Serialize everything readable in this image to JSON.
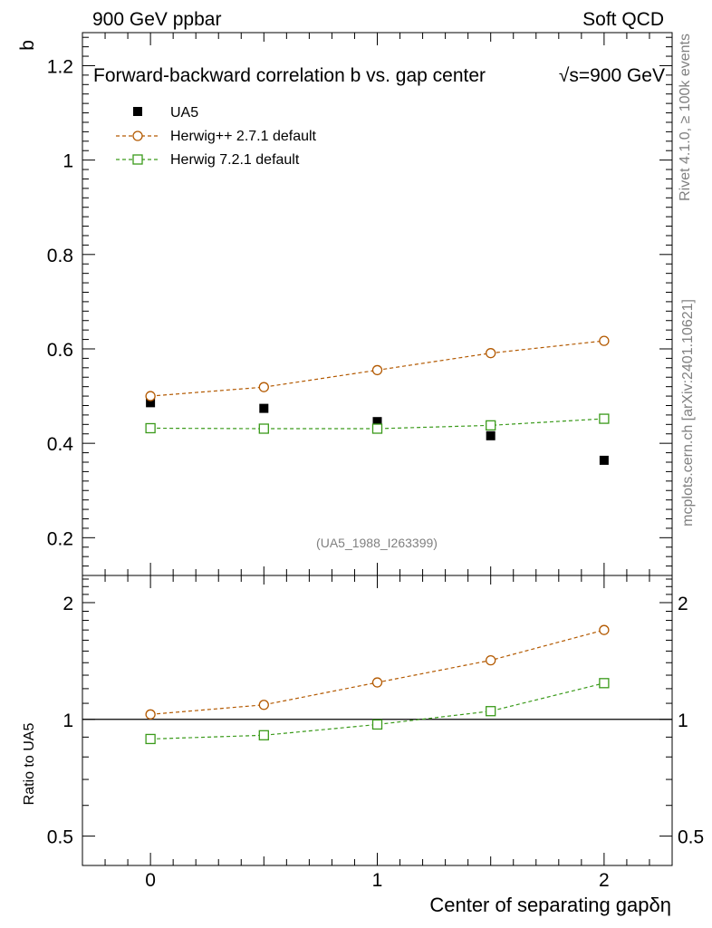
{
  "header": {
    "left": "900 GeV ppbar",
    "right": "Soft QCD"
  },
  "side": {
    "rivet": "Rivet 4.1.0, ≥ 100k events",
    "mcplots": "mcplots.cern.ch [arXiv:2401.10621]"
  },
  "chart_data": [
    {
      "type": "scatter",
      "title": "Forward-backward correlation b  vs. gap center",
      "energy_label": "√s=900 GeV",
      "ylabel": "b",
      "analysis_id": "(UA5_1988_I263399)",
      "xlim": [
        -0.3,
        2.3
      ],
      "ylim": [
        0.12,
        1.27
      ],
      "yticks": [
        0.2,
        0.4,
        0.6,
        0.8,
        1,
        1.2
      ],
      "ytick_labels": [
        "0.2",
        "0.4",
        "0.6",
        "0.8",
        "1",
        "1.2"
      ],
      "legend_position": "top-left",
      "series": [
        {
          "name": "UA5",
          "color": "#000000",
          "marker": "filled-square",
          "x": [
            0,
            0.5,
            1,
            1.5,
            2
          ],
          "y": [
            0.486,
            0.474,
            0.446,
            0.416,
            0.364
          ]
        },
        {
          "name": "Herwig++ 2.7.1 default",
          "color": "#b35900",
          "marker": "open-circle",
          "x": [
            0,
            0.5,
            1,
            1.5,
            2
          ],
          "y": [
            0.5,
            0.519,
            0.555,
            0.591,
            0.617
          ]
        },
        {
          "name": "Herwig 7.2.1 default",
          "color": "#3a9a1a",
          "marker": "open-square",
          "x": [
            0,
            0.5,
            1,
            1.5,
            2
          ],
          "y": [
            0.432,
            0.431,
            0.431,
            0.438,
            0.452
          ]
        }
      ]
    },
    {
      "type": "line",
      "ylabel": "Ratio to UA5",
      "xlabel": "Center of separating gapδη",
      "xlim": [
        -0.3,
        2.3
      ],
      "ylim": [
        0.42,
        2.35
      ],
      "yscale": "log",
      "yticks": [
        0.5,
        1,
        2
      ],
      "ytick_labels": [
        "0.5",
        "1",
        "2"
      ],
      "xticks": [
        0,
        1,
        2
      ],
      "xtick_labels": [
        "0",
        "1",
        "2"
      ],
      "reference_line": 1,
      "series": [
        {
          "name": "Herwig++ 2.7.1 default",
          "color": "#b35900",
          "marker": "open-circle",
          "x": [
            0,
            0.5,
            1,
            1.5,
            2
          ],
          "y": [
            1.03,
            1.09,
            1.245,
            1.42,
            1.7
          ]
        },
        {
          "name": "Herwig 7.2.1 default",
          "color": "#3a9a1a",
          "marker": "open-square",
          "x": [
            0,
            0.5,
            1,
            1.5,
            2
          ],
          "y": [
            0.89,
            0.91,
            0.97,
            1.05,
            1.24
          ]
        }
      ]
    }
  ]
}
